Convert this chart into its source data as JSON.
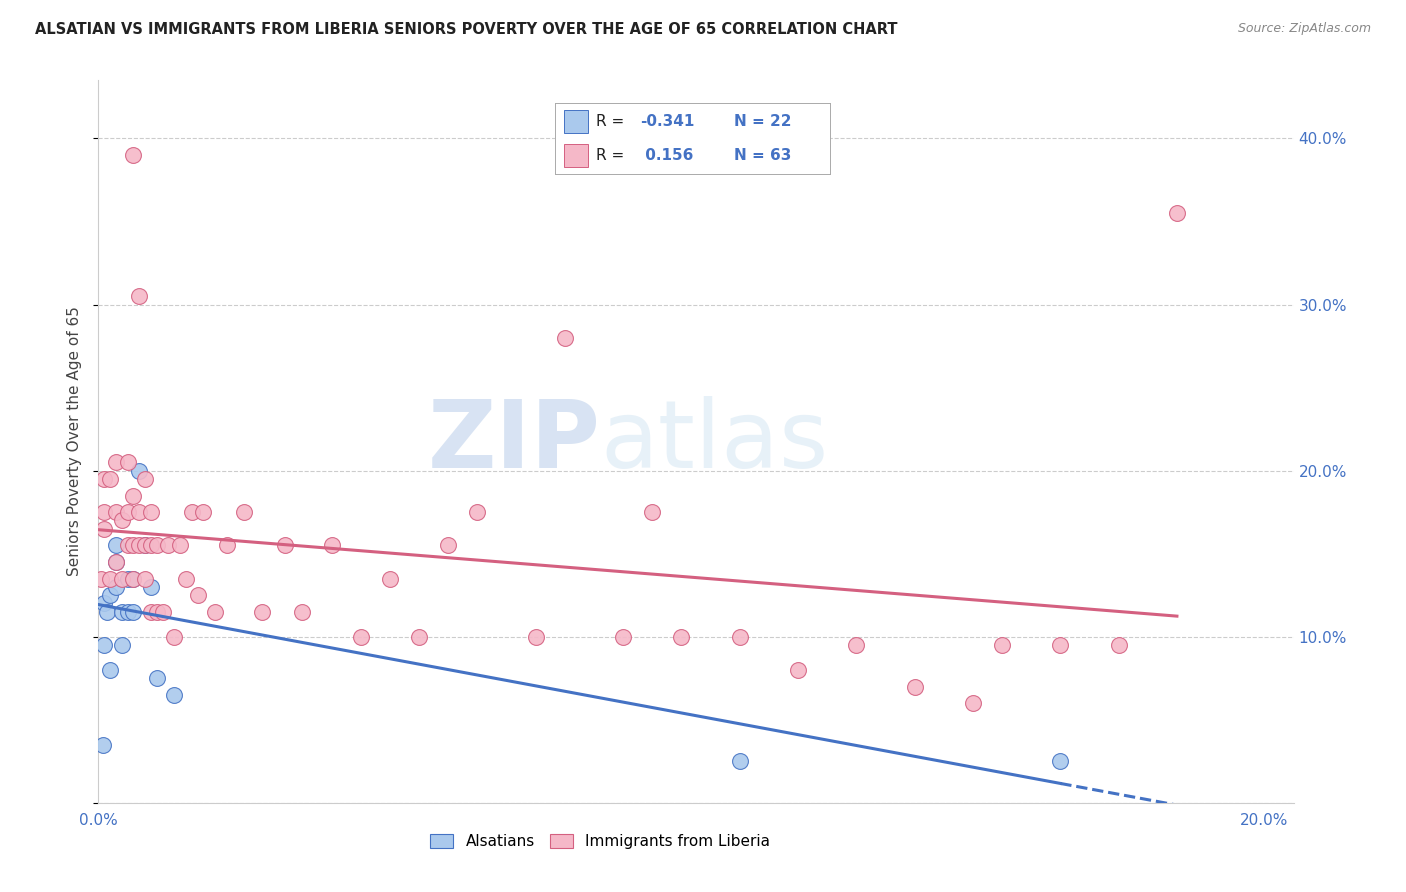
{
  "title": "ALSATIAN VS IMMIGRANTS FROM LIBERIA SENIORS POVERTY OVER THE AGE OF 65 CORRELATION CHART",
  "source": "Source: ZipAtlas.com",
  "ylabel": "Seniors Poverty Over the Age of 65",
  "xlim": [
    0.0,
    0.205
  ],
  "ylim": [
    0.0,
    0.435
  ],
  "legend_labels": [
    "Alsatians",
    "Immigrants from Liberia"
  ],
  "R_alsatian": -0.341,
  "N_alsatian": 22,
  "R_liberia": 0.156,
  "N_liberia": 63,
  "color_alsatian": "#aac9ed",
  "color_liberia": "#f5b8c8",
  "line_color_alsatian": "#4472c4",
  "line_color_liberia": "#d46080",
  "watermark_zip": "ZIP",
  "watermark_atlas": "atlas",
  "alsatian_x": [
    0.0008,
    0.001,
    0.001,
    0.0015,
    0.002,
    0.002,
    0.003,
    0.003,
    0.003,
    0.004,
    0.004,
    0.005,
    0.005,
    0.006,
    0.006,
    0.007,
    0.008,
    0.009,
    0.01,
    0.013,
    0.11,
    0.165
  ],
  "alsatian_y": [
    0.035,
    0.12,
    0.095,
    0.115,
    0.08,
    0.125,
    0.155,
    0.13,
    0.145,
    0.095,
    0.115,
    0.135,
    0.115,
    0.115,
    0.135,
    0.2,
    0.155,
    0.13,
    0.075,
    0.065,
    0.025,
    0.025
  ],
  "liberia_x": [
    0.0005,
    0.001,
    0.001,
    0.001,
    0.002,
    0.002,
    0.003,
    0.003,
    0.003,
    0.004,
    0.004,
    0.005,
    0.005,
    0.005,
    0.006,
    0.006,
    0.006,
    0.006,
    0.007,
    0.007,
    0.007,
    0.008,
    0.008,
    0.008,
    0.009,
    0.009,
    0.009,
    0.01,
    0.01,
    0.011,
    0.012,
    0.013,
    0.014,
    0.015,
    0.016,
    0.017,
    0.018,
    0.02,
    0.022,
    0.025,
    0.028,
    0.032,
    0.035,
    0.04,
    0.045,
    0.05,
    0.055,
    0.06,
    0.065,
    0.075,
    0.08,
    0.09,
    0.095,
    0.1,
    0.11,
    0.12,
    0.13,
    0.14,
    0.15,
    0.155,
    0.165,
    0.175,
    0.185
  ],
  "liberia_y": [
    0.135,
    0.165,
    0.175,
    0.195,
    0.135,
    0.195,
    0.145,
    0.175,
    0.205,
    0.135,
    0.17,
    0.175,
    0.155,
    0.205,
    0.135,
    0.155,
    0.185,
    0.39,
    0.155,
    0.175,
    0.305,
    0.135,
    0.155,
    0.195,
    0.115,
    0.155,
    0.175,
    0.115,
    0.155,
    0.115,
    0.155,
    0.1,
    0.155,
    0.135,
    0.175,
    0.125,
    0.175,
    0.115,
    0.155,
    0.175,
    0.115,
    0.155,
    0.115,
    0.155,
    0.1,
    0.135,
    0.1,
    0.155,
    0.175,
    0.1,
    0.28,
    0.1,
    0.175,
    0.1,
    0.1,
    0.08,
    0.095,
    0.07,
    0.06,
    0.095,
    0.095,
    0.095,
    0.355
  ]
}
